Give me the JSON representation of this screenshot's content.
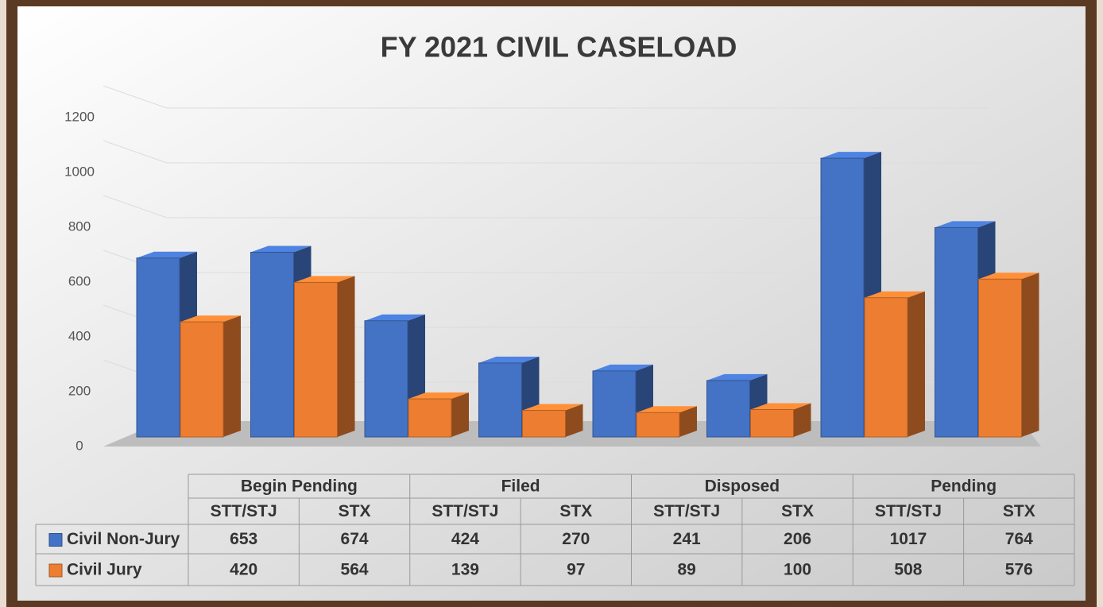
{
  "chart_data": {
    "type": "bar",
    "title": "FY 2021 CIVIL CASELOAD",
    "category_groups": [
      "Begin Pending",
      "Filed",
      "Disposed",
      "Pending"
    ],
    "categories": [
      "STT/STJ",
      "STX",
      "STT/STJ",
      "STX",
      "STT/STJ",
      "STX",
      "STT/STJ",
      "STX"
    ],
    "series": [
      {
        "name": "Civil Non-Jury",
        "color": "#4472c4",
        "values": [
          653,
          674,
          424,
          270,
          241,
          206,
          1017,
          764
        ]
      },
      {
        "name": "Civil Jury",
        "color": "#ed7d31",
        "values": [
          420,
          564,
          139,
          97,
          89,
          100,
          508,
          576
        ]
      }
    ],
    "ylim": [
      0,
      1200
    ],
    "yticks": [
      0,
      200,
      400,
      600,
      800,
      1000,
      1200
    ],
    "grid": true
  }
}
